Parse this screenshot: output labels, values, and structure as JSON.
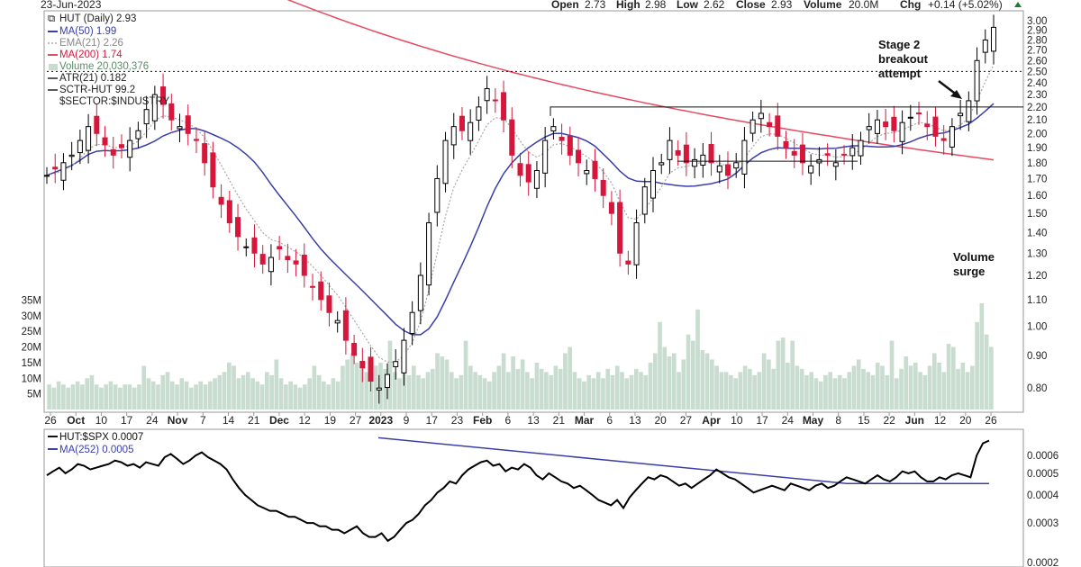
{
  "header": {
    "date": "23-Jun-2023",
    "open_label": "Open",
    "open": "2.73",
    "high_label": "High",
    "high": "2.98",
    "low_label": "Low",
    "low": "2.62",
    "close_label": "Close",
    "close": "2.93",
    "volume_label": "Volume",
    "volume": "20.0M",
    "chg_label": "Chg",
    "chg": "+0.14 (+5.02%)",
    "chg_icon": "up-triangle-icon"
  },
  "legend": {
    "ticker": "HUT (Daily) 2.93",
    "ma50": "MA(50) 1.99",
    "ema21": "EMA(21) 2.26",
    "ma200": "MA(200) 1.74",
    "volume": "Volume 20,030,376",
    "atr": "ATR(21) 0.182",
    "sctr": "SCTR-HUT 99.2",
    "sector": "$SECTOR:$INDUSTRY"
  },
  "annotations": {
    "stage2_line1": "Stage 2",
    "stage2_line2": "breakout",
    "stage2_line3": "attempt",
    "volume_line1": "Volume",
    "volume_line2": "surge"
  },
  "lower_legend": {
    "ratio": "HUT:$SPX 0.0007",
    "ma252": "MA(252) 0.0005"
  },
  "colors": {
    "up": "#000000",
    "down": "#d6173c",
    "ma50": "#3a3fa8",
    "ema21": "#a8a8a8",
    "ma200": "#e64960",
    "volume": "#c8dcd0",
    "ratio": "#000000",
    "ma252": "#3a3fa8"
  },
  "chart_data": [
    {
      "type": "candlestick",
      "title": "HUT (Daily) 2.93",
      "yscale": "log",
      "ylim": [
        0.76,
        3.05
      ],
      "y_ticks": [
        "3.00",
        "2.90",
        "2.80",
        "2.70",
        "2.60",
        "2.50",
        "2.40",
        "2.30",
        "2.20",
        "2.10",
        "2.00",
        "1.90",
        "1.80",
        "1.70",
        "1.60",
        "1.50",
        "1.40",
        "1.30",
        "1.20",
        "1.10",
        "1.00",
        "0.90",
        "0.80"
      ],
      "x_ticks": [
        "26",
        "Oct",
        "10",
        "17",
        "24",
        "Nov",
        "7",
        "14",
        "21",
        "Dec",
        "12",
        "19",
        "27",
        "2023",
        "9",
        "17",
        "23",
        "Feb",
        "6",
        "13",
        "21",
        "Mar",
        "6",
        "13",
        "20",
        "27",
        "Apr",
        "10",
        "17",
        "24",
        "May",
        "8",
        "15",
        "22",
        "Jun",
        "12",
        "20",
        "26"
      ],
      "close_series": [
        1.72,
        1.76,
        1.8,
        1.85,
        1.95,
        2.05,
        2.0,
        1.92,
        1.85,
        1.9,
        1.95,
        2.02,
        2.18,
        2.3,
        2.22,
        2.1,
        2.05,
        2.0,
        1.95,
        1.8,
        1.65,
        1.55,
        1.45,
        1.38,
        1.33,
        1.3,
        1.25,
        1.28,
        1.32,
        1.27,
        1.25,
        1.2,
        1.15,
        1.1,
        1.05,
        1.02,
        0.95,
        0.9,
        0.86,
        0.82,
        0.8,
        0.84,
        0.88,
        0.95,
        1.05,
        1.2,
        1.45,
        1.7,
        1.95,
        2.05,
        2.02,
        2.08,
        2.2,
        2.35,
        2.25,
        2.1,
        1.85,
        1.72,
        1.68,
        1.75,
        1.95,
        2.05,
        1.95,
        1.85,
        1.8,
        1.75,
        1.7,
        1.6,
        1.5,
        1.3,
        1.25,
        1.45,
        1.65,
        1.75,
        1.8,
        1.95,
        1.85,
        1.8,
        1.82,
        1.85,
        1.8,
        1.78,
        1.72,
        1.8,
        1.95,
        2.1,
        2.15,
        2.05,
        1.98,
        1.9,
        1.85,
        1.8,
        1.78,
        1.82,
        1.85,
        1.8,
        1.85,
        1.9,
        1.95,
        2.05,
        2.1,
        2.05,
        2.02,
        2.08,
        2.12,
        2.15,
        2.05,
        1.98,
        1.95,
        2.05,
        2.15,
        2.25,
        2.6,
        2.8,
        2.93
      ],
      "reference_lines": [
        {
          "y": 2.5,
          "style": "dotted"
        },
        {
          "y": 2.2,
          "style": "solid",
          "x_from": "13 Feb",
          "x_to": "26 Jun"
        },
        {
          "y": 1.81,
          "style": "solid",
          "x_from": "27 Mar",
          "x_to": "22 May"
        }
      ],
      "series": [
        {
          "name": "MA(50) 1.99",
          "last": 1.99
        },
        {
          "name": "EMA(21) 2.26",
          "last": 2.26
        },
        {
          "name": "MA(200) 1.74",
          "last": 1.74
        }
      ],
      "legend_position": "top-left"
    },
    {
      "type": "bar",
      "title": "Volume 20,030,376",
      "y_ticks": [
        "35M",
        "30M",
        "25M",
        "20M",
        "15M",
        "10M",
        "5M"
      ],
      "ylim": [
        0,
        36
      ],
      "unit": "M",
      "values": [
        8,
        7,
        9,
        8,
        7,
        8,
        9,
        8,
        10,
        11,
        8,
        7,
        8,
        9,
        8,
        7,
        8,
        8,
        7,
        8,
        14,
        10,
        9,
        8,
        11,
        12,
        9,
        8,
        10,
        9,
        7,
        8,
        9,
        8,
        9,
        10,
        11,
        12,
        15,
        14,
        10,
        11,
        12,
        10,
        9,
        8,
        12,
        11,
        16,
        10,
        8,
        9,
        8,
        7,
        8,
        10,
        14,
        11,
        9,
        8,
        10,
        9,
        14,
        16,
        18,
        15,
        13,
        12,
        12,
        14,
        15,
        13,
        22,
        12,
        10,
        13,
        11,
        14,
        11,
        10,
        12,
        13,
        18,
        17,
        16,
        12,
        10,
        11,
        22,
        14,
        12,
        11,
        10,
        9,
        12,
        14,
        18,
        12,
        17,
        13,
        16,
        12,
        10,
        15,
        13,
        12,
        11,
        14,
        13,
        18,
        20,
        12,
        10,
        9,
        11,
        10,
        12,
        10,
        13,
        11,
        14,
        12,
        10,
        11,
        13,
        12,
        11,
        15,
        18,
        28,
        20,
        17,
        18,
        12,
        16,
        24,
        22,
        32,
        19,
        18,
        16,
        14,
        12,
        12,
        11,
        10,
        12,
        14,
        13,
        11,
        12,
        18,
        16,
        13,
        22,
        23,
        15,
        22,
        14,
        13,
        11,
        12,
        10,
        9,
        11,
        12,
        10,
        11,
        10,
        12,
        14,
        16,
        13,
        12,
        11,
        15,
        14,
        11,
        22,
        10,
        13,
        17,
        14,
        15,
        12,
        11,
        14,
        18,
        15,
        12,
        21,
        20,
        13,
        15,
        12,
        14,
        28,
        34,
        24,
        20
      ],
      "legend_position": "top-left"
    },
    {
      "type": "line",
      "title": "HUT:$SPX 0.0007",
      "yscale": "log",
      "ylim": [
        0.0002,
        0.00075
      ],
      "y_ticks": [
        "0.0006",
        "0.0005",
        "0.0004",
        "0.0003",
        "0.0002"
      ],
      "series": [
        {
          "name": "HUT:$SPX 0.0007",
          "values": [
            0.00049,
            0.00051,
            0.00053,
            0.0005,
            0.00052,
            0.00055,
            0.00054,
            0.00052,
            0.00053,
            0.00054,
            0.00055,
            0.00057,
            0.00056,
            0.00054,
            0.00055,
            0.00053,
            0.00056,
            0.00055,
            0.00054,
            0.00059,
            0.00061,
            0.00058,
            0.00055,
            0.00057,
            0.0006,
            0.00062,
            0.00059,
            0.00057,
            0.00055,
            0.00052,
            0.00047,
            0.00043,
            0.0004,
            0.00038,
            0.00036,
            0.00035,
            0.00034,
            0.00034,
            0.00033,
            0.00032,
            0.00032,
            0.00031,
            0.0003,
            0.0003,
            0.00029,
            0.00029,
            0.00028,
            0.00028,
            0.00027,
            0.00028,
            0.00029,
            0.00027,
            0.00026,
            0.00026,
            0.00027,
            0.00025,
            0.00026,
            0.00028,
            0.0003,
            0.00031,
            0.00033,
            0.00036,
            0.00038,
            0.00041,
            0.00043,
            0.00046,
            0.00045,
            0.00049,
            0.00052,
            0.00054,
            0.00056,
            0.00057,
            0.00054,
            0.00055,
            0.00051,
            0.00053,
            0.00052,
            0.00055,
            0.00053,
            0.00049,
            0.00047,
            0.0005,
            0.00048,
            0.00046,
            0.00045,
            0.00043,
            0.00044,
            0.00042,
            0.0004,
            0.00038,
            0.00037,
            0.00036,
            0.00038,
            0.00035,
            0.00039,
            0.00042,
            0.00045,
            0.00048,
            0.00047,
            0.00049,
            0.00048,
            0.00046,
            0.00044,
            0.00045,
            0.00043,
            0.00045,
            0.00047,
            0.00049,
            0.00052,
            0.0005,
            0.00048,
            0.00047,
            0.00045,
            0.00043,
            0.00041,
            0.00042,
            0.00043,
            0.00044,
            0.00043,
            0.00042,
            0.00045,
            0.00044,
            0.00043,
            0.00042,
            0.00044,
            0.00045,
            0.00043,
            0.00044,
            0.00046,
            0.00048,
            0.00047,
            0.00046,
            0.00045,
            0.00047,
            0.00049,
            0.00047,
            0.00046,
            0.00048,
            0.00051,
            0.0005,
            0.00051,
            0.00048,
            0.00046,
            0.00046,
            0.00048,
            0.00047,
            0.00049,
            0.0005,
            0.00049,
            0.00048,
            0.0006,
            0.00068,
            0.0007
          ]
        },
        {
          "name": "MA(252) 0.0005",
          "start": 0.00072,
          "end": 0.00045
        }
      ],
      "legend_position": "top-left"
    }
  ]
}
